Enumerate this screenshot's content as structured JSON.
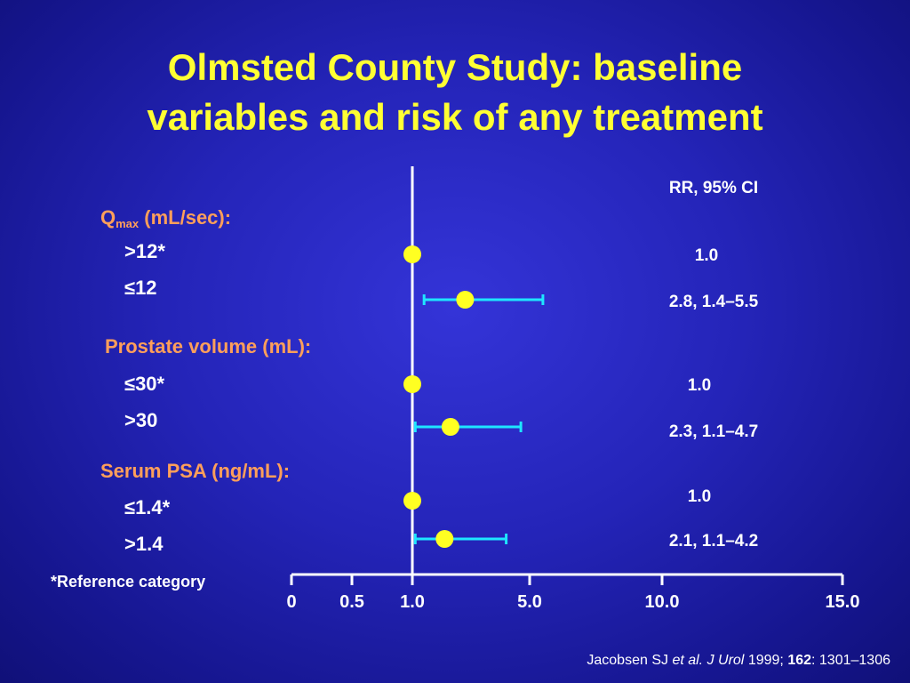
{
  "title_line1": "Olmsted County Study: baseline",
  "title_line2": "variables and risk of any treatment",
  "rr_header": "RR, 95% CI",
  "footnote": "*Reference category",
  "citation": {
    "authors": "Jacobsen SJ",
    "etal": "et al.",
    "journal": "J Urol",
    "year": "1999;",
    "volume": "162",
    "pages": ": 1301–1306"
  },
  "groups": [
    {
      "label_main": "Q",
      "label_sub": "max",
      "label_rest": " (mL/sec):",
      "items": [
        {
          "label": ">12*",
          "rr_text": "1.0"
        },
        {
          "label": "≤12",
          "rr_text": "2.8, 1.4–5.5"
        }
      ]
    },
    {
      "label_main": "Prostate volume (mL):",
      "items": [
        {
          "label": "≤30*",
          "rr_text": "1.0"
        },
        {
          "label": ">30",
          "rr_text": "2.3, 1.1–4.7"
        }
      ]
    },
    {
      "label_main": "Serum PSA (ng/mL):",
      "items": [
        {
          "label": "≤1.4*",
          "rr_text": "1.0"
        },
        {
          "label": ">1.4",
          "rr_text": "2.1, 1.1–4.2"
        }
      ]
    }
  ],
  "chart_data": {
    "type": "scatter",
    "title": "Olmsted County Study: baseline variables and risk of any treatment",
    "x_ticks": [
      0,
      0.5,
      1.0,
      5.0,
      10.0,
      15.0
    ],
    "x_tick_labels": [
      "0",
      "0.5",
      "1.0",
      "5.0",
      "10.0",
      "15.0"
    ],
    "reference_line": 1.0,
    "series": [
      {
        "category": ">12*",
        "rr": 1.0,
        "ci": null
      },
      {
        "category": "≤12",
        "rr": 2.8,
        "ci": [
          1.4,
          5.5
        ]
      },
      {
        "category": "≤30*",
        "rr": 1.0,
        "ci": null
      },
      {
        "category": ">30",
        "rr": 2.3,
        "ci": [
          1.1,
          4.7
        ]
      },
      {
        "category": "≤1.4*",
        "rr": 1.0,
        "ci": null
      },
      {
        "category": ">1.4",
        "rr": 2.1,
        "ci": [
          1.1,
          4.2
        ]
      }
    ],
    "colors": {
      "point": "#ffff22",
      "ci": "#1ee6ff",
      "axis": "#ffffff"
    }
  }
}
